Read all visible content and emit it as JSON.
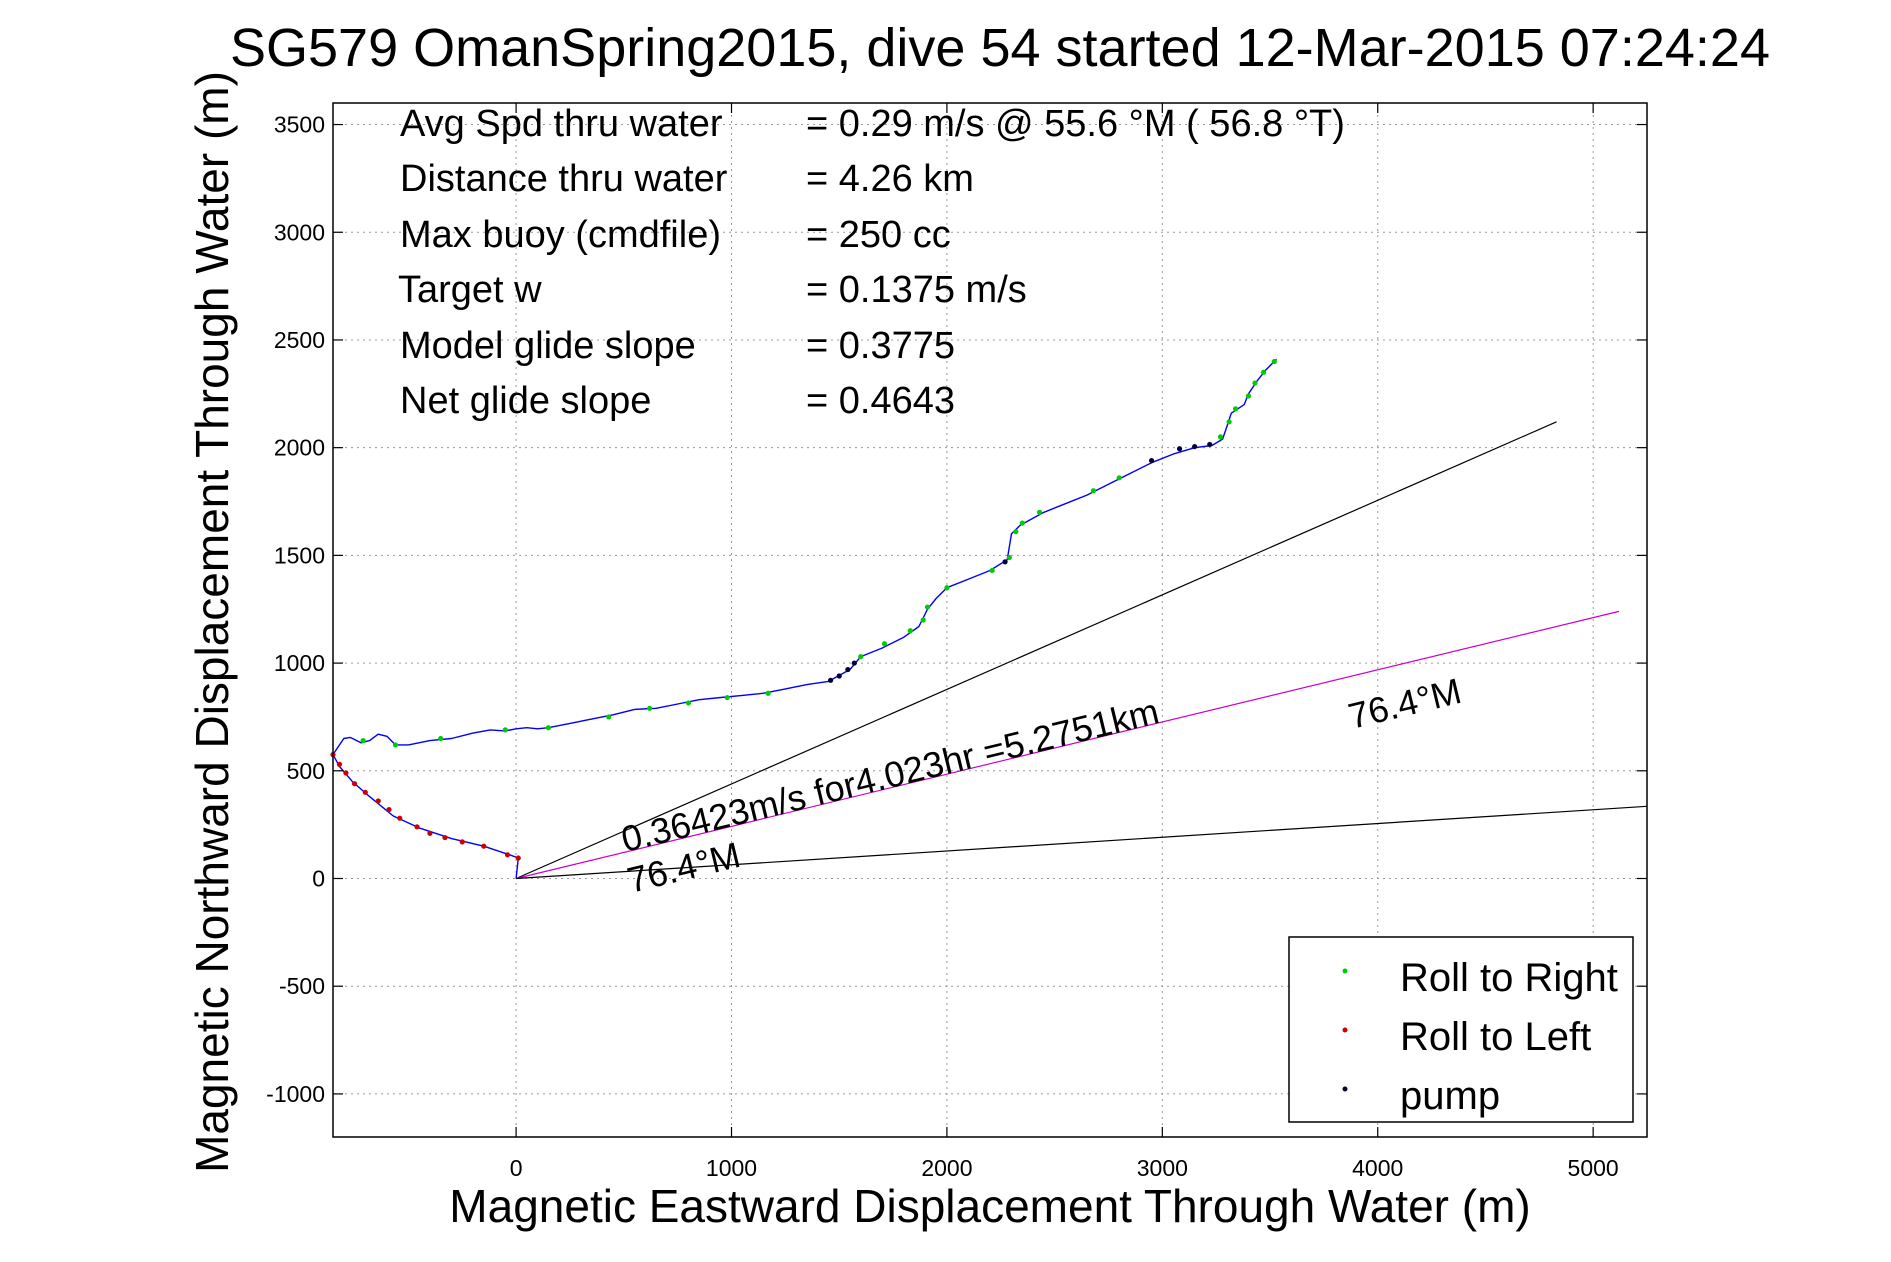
{
  "chart_data": {
    "type": "line",
    "title": "SG579 OmanSpring2015, dive 54 started 12-Mar-2015 07:24:24",
    "xlabel": "Magnetic Eastward Displacement Through Water (m)",
    "ylabel": "Magnetic Northward Displacement Through Water (m)",
    "xlim": [
      -850,
      5250
    ],
    "ylim": [
      -1200,
      3600
    ],
    "xticks": [
      0,
      1000,
      2000,
      3000,
      4000,
      5000
    ],
    "yticks": [
      -1000,
      -500,
      0,
      500,
      1000,
      1500,
      2000,
      2500,
      3000,
      3500
    ],
    "grid": true,
    "legend_position": "bottom-right",
    "stats": [
      {
        "label": "Avg Spd thru water",
        "value": "=  0.29 m/s @  55.6 °M ( 56.8 °T)"
      },
      {
        "label": "Distance thru water",
        "value": "=  4.26 km"
      },
      {
        "label": "Max buoy (cmdfile)",
        "value": "= 250 cc"
      },
      {
        "label": "Target w",
        "value": "= 0.1375 m/s"
      },
      {
        "label": "Model glide slope",
        "value": "= 0.3775"
      },
      {
        "label": "Net glide slope",
        "value": "= 0.4643"
      }
    ],
    "annotations": {
      "current": "0.36423m/s for4.023hr =5.2751km",
      "heading_origin": "76.4°M",
      "heading_far": "76.4°M"
    },
    "reference_lines": [
      {
        "name": "upper-course-line",
        "color": "#000000",
        "from": [
          0,
          0
        ],
        "to": [
          4830,
          2120
        ]
      },
      {
        "name": "current-line",
        "color": "#cc00cc",
        "from": [
          0,
          0
        ],
        "to": [
          5120,
          1240
        ]
      },
      {
        "name": "lower-course-line",
        "color": "#000000",
        "from": [
          0,
          0
        ],
        "to": [
          5250,
          335
        ]
      }
    ],
    "track_color": "#0000ff",
    "track": [
      [
        0,
        0
      ],
      [
        10,
        95
      ],
      [
        -30,
        110
      ],
      [
        -150,
        150
      ],
      [
        -300,
        185
      ],
      [
        -450,
        235
      ],
      [
        -570,
        290
      ],
      [
        -680,
        380
      ],
      [
        -760,
        450
      ],
      [
        -820,
        520
      ],
      [
        -850,
        575
      ],
      [
        -820,
        620
      ],
      [
        -800,
        650
      ],
      [
        -770,
        655
      ],
      [
        -720,
        630
      ],
      [
        -680,
        640
      ],
      [
        -640,
        670
      ],
      [
        -600,
        660
      ],
      [
        -560,
        620
      ],
      [
        -500,
        620
      ],
      [
        -400,
        640
      ],
      [
        -300,
        650
      ],
      [
        -200,
        675
      ],
      [
        -120,
        690
      ],
      [
        -50,
        685
      ],
      [
        0,
        695
      ],
      [
        50,
        700
      ],
      [
        100,
        695
      ],
      [
        150,
        700
      ],
      [
        250,
        720
      ],
      [
        350,
        740
      ],
      [
        450,
        760
      ],
      [
        550,
        785
      ],
      [
        650,
        790
      ],
      [
        750,
        810
      ],
      [
        850,
        830
      ],
      [
        950,
        840
      ],
      [
        1050,
        850
      ],
      [
        1150,
        860
      ],
      [
        1250,
        880
      ],
      [
        1350,
        900
      ],
      [
        1450,
        915
      ],
      [
        1550,
        970
      ],
      [
        1600,
        1030
      ],
      [
        1700,
        1070
      ],
      [
        1800,
        1120
      ],
      [
        1870,
        1170
      ],
      [
        1910,
        1250
      ],
      [
        1950,
        1300
      ],
      [
        2000,
        1350
      ],
      [
        2100,
        1390
      ],
      [
        2200,
        1430
      ],
      [
        2280,
        1480
      ],
      [
        2300,
        1600
      ],
      [
        2340,
        1640
      ],
      [
        2450,
        1700
      ],
      [
        2550,
        1740
      ],
      [
        2650,
        1780
      ],
      [
        2750,
        1830
      ],
      [
        2850,
        1880
      ],
      [
        2950,
        1930
      ],
      [
        3050,
        1970
      ],
      [
        3150,
        2000
      ],
      [
        3230,
        2010
      ],
      [
        3280,
        2040
      ],
      [
        3300,
        2100
      ],
      [
        3320,
        2160
      ],
      [
        3380,
        2200
      ],
      [
        3400,
        2250
      ],
      [
        3440,
        2310
      ],
      [
        3480,
        2360
      ],
      [
        3530,
        2410
      ]
    ],
    "series": [
      {
        "name": "Roll to Right",
        "color": "#00cc00",
        "points": [
          [
            -710,
            640
          ],
          [
            -560,
            620
          ],
          [
            -350,
            650
          ],
          [
            -50,
            690
          ],
          [
            150,
            700
          ],
          [
            430,
            750
          ],
          [
            620,
            790
          ],
          [
            800,
            815
          ],
          [
            980,
            840
          ],
          [
            1170,
            860
          ],
          [
            1600,
            1030
          ],
          [
            1710,
            1090
          ],
          [
            1830,
            1150
          ],
          [
            1890,
            1200
          ],
          [
            1910,
            1260
          ],
          [
            2000,
            1350
          ],
          [
            2210,
            1430
          ],
          [
            2290,
            1490
          ],
          [
            2320,
            1610
          ],
          [
            2350,
            1650
          ],
          [
            2430,
            1700
          ],
          [
            2680,
            1800
          ],
          [
            2800,
            1860
          ],
          [
            3270,
            2050
          ],
          [
            3310,
            2120
          ],
          [
            3340,
            2180
          ],
          [
            3400,
            2240
          ],
          [
            3430,
            2300
          ],
          [
            3470,
            2350
          ],
          [
            3520,
            2400
          ]
        ]
      },
      {
        "name": "Roll to Left",
        "color": "#cc0000",
        "points": [
          [
            -850,
            575
          ],
          [
            -820,
            530
          ],
          [
            -790,
            490
          ],
          [
            -750,
            440
          ],
          [
            -700,
            400
          ],
          [
            -640,
            360
          ],
          [
            -590,
            320
          ],
          [
            -540,
            280
          ],
          [
            -460,
            240
          ],
          [
            -400,
            210
          ],
          [
            -330,
            190
          ],
          [
            -250,
            170
          ],
          [
            -150,
            150
          ],
          [
            -40,
            110
          ],
          [
            10,
            95
          ]
        ]
      },
      {
        "name": "pump",
        "color": "#000033",
        "points": [
          [
            1460,
            920
          ],
          [
            1500,
            940
          ],
          [
            1540,
            970
          ],
          [
            1570,
            1000
          ],
          [
            2270,
            1470
          ],
          [
            2950,
            1940
          ],
          [
            3080,
            1995
          ],
          [
            3150,
            2005
          ],
          [
            3220,
            2015
          ]
        ]
      }
    ]
  }
}
